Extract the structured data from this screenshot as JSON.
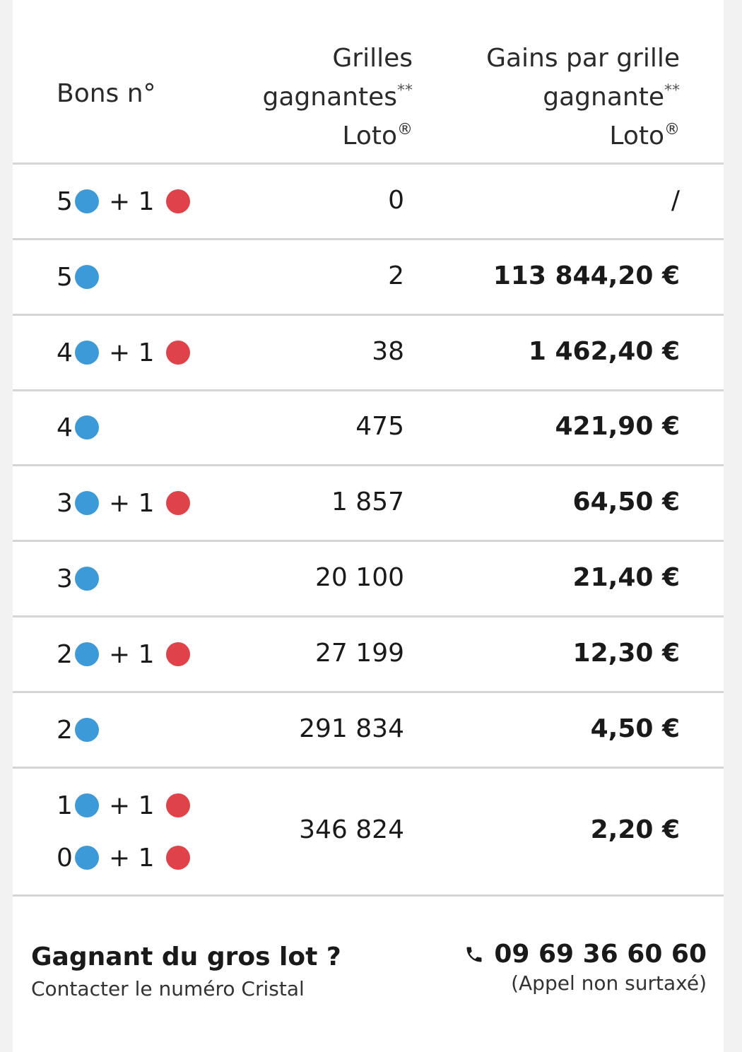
{
  "header": {
    "col1": "Bons n°",
    "col2_line1": "Grilles",
    "col2_line2": "gagnantes",
    "col2_line3": "Loto",
    "col3_line1": "Gains par grille",
    "col3_line2": "gagnante",
    "col3_line3": "Loto",
    "stars": "**",
    "registered": "®"
  },
  "plus_label": "+ 1",
  "rows": [
    {
      "blue": "5",
      "red": true,
      "grilles": "0",
      "gain": "/"
    },
    {
      "blue": "5",
      "red": false,
      "grilles": "2",
      "gain": "113 844,20 €"
    },
    {
      "blue": "4",
      "red": true,
      "grilles": "38",
      "gain": "1 462,40 €"
    },
    {
      "blue": "4",
      "red": false,
      "grilles": "475",
      "gain": "421,90 €"
    },
    {
      "blue": "3",
      "red": true,
      "grilles": "1 857",
      "gain": "64,50 €"
    },
    {
      "blue": "3",
      "red": false,
      "grilles": "20 100",
      "gain": "21,40 €"
    },
    {
      "blue": "2",
      "red": true,
      "grilles": "27 199",
      "gain": "12,30 €"
    },
    {
      "blue": "2",
      "red": false,
      "grilles": "291 834",
      "gain": "4,50 €"
    },
    {
      "blue": "1",
      "blue_alt": "0",
      "red": true,
      "grilles": "346 824",
      "gain": "2,20 €"
    }
  ],
  "footer": {
    "title": "Gagnant du gros lot ?",
    "subtitle": "Contacter le numéro Cristal",
    "phone": "09 69 36 60 60",
    "phone_note": "(Appel non surtaxé)",
    "phone_icon": "phone-icon"
  },
  "colors": {
    "blue_ball": "#3d9ad8",
    "red_ball": "#df4249",
    "divider": "#d5d5d5"
  }
}
